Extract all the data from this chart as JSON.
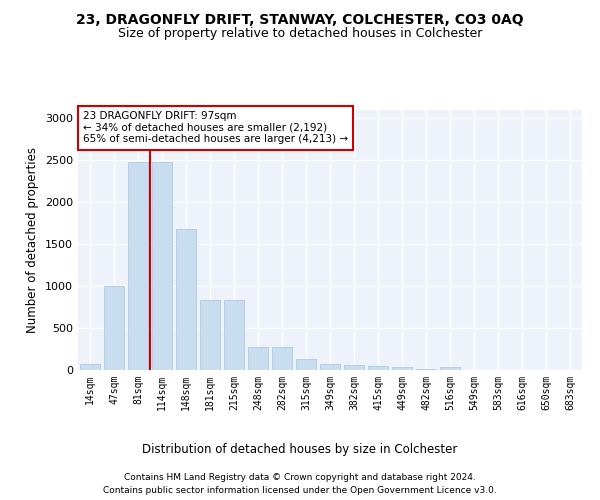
{
  "title": "23, DRAGONFLY DRIFT, STANWAY, COLCHESTER, CO3 0AQ",
  "subtitle": "Size of property relative to detached houses in Colchester",
  "xlabel": "Distribution of detached houses by size in Colchester",
  "ylabel": "Number of detached properties",
  "categories": [
    "14sqm",
    "47sqm",
    "81sqm",
    "114sqm",
    "148sqm",
    "181sqm",
    "215sqm",
    "248sqm",
    "282sqm",
    "315sqm",
    "349sqm",
    "382sqm",
    "415sqm",
    "449sqm",
    "482sqm",
    "516sqm",
    "549sqm",
    "583sqm",
    "616sqm",
    "650sqm",
    "683sqm"
  ],
  "values": [
    75,
    1000,
    2480,
    2480,
    1680,
    840,
    840,
    270,
    270,
    135,
    75,
    60,
    50,
    40,
    10,
    30,
    5,
    3,
    2,
    1,
    0
  ],
  "bar_color": "#c9ddf0",
  "bar_edge_color": "#a8c4e0",
  "annotation_text": "23 DRAGONFLY DRIFT: 97sqm\n← 34% of detached houses are smaller (2,192)\n65% of semi-detached houses are larger (4,213) →",
  "annotation_box_color": "#ffffff",
  "annotation_border_color": "#cc0000",
  "footer_line1": "Contains HM Land Registry data © Crown copyright and database right 2024.",
  "footer_line2": "Contains public sector information licensed under the Open Government Licence v3.0.",
  "ylim": [
    0,
    3100
  ],
  "yticks": [
    0,
    500,
    1000,
    1500,
    2000,
    2500,
    3000
  ],
  "bg_color": "#edf2fb",
  "grid_color": "#ffffff",
  "title_fontsize": 10,
  "subtitle_fontsize": 9,
  "xlabel_fontsize": 8.5,
  "ylabel_fontsize": 8.5
}
